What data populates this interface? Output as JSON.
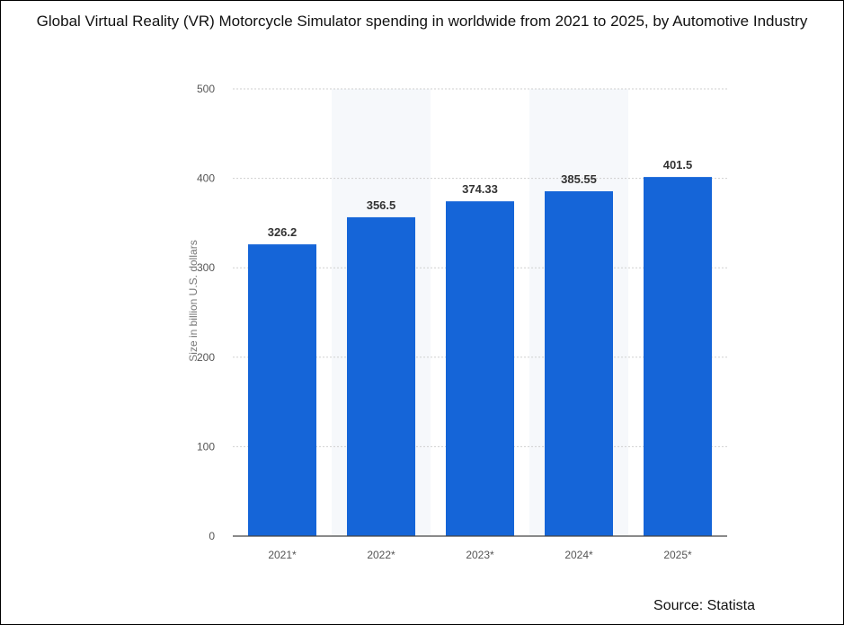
{
  "chart_data": {
    "type": "bar",
    "title": "Global Virtual Reality (VR) Motorcycle Simulator spending in worldwide from 2021 to 2025, by Automotive Industry",
    "categories": [
      "2021*",
      "2022*",
      "2023*",
      "2024*",
      "2025*"
    ],
    "values": [
      326.2,
      356.5,
      374.33,
      385.55,
      401.5
    ],
    "data_labels": [
      "326.2",
      "356.5",
      "374.33",
      "385.55",
      "401.5"
    ],
    "ylabel": "Size in billion U.S. dollars",
    "xlabel": "",
    "ylim": [
      0,
      500
    ],
    "yticks": [
      0,
      100,
      200,
      300,
      400,
      500
    ],
    "grid": true,
    "bar_color": "#1565d8",
    "source": "Source: Statista"
  }
}
